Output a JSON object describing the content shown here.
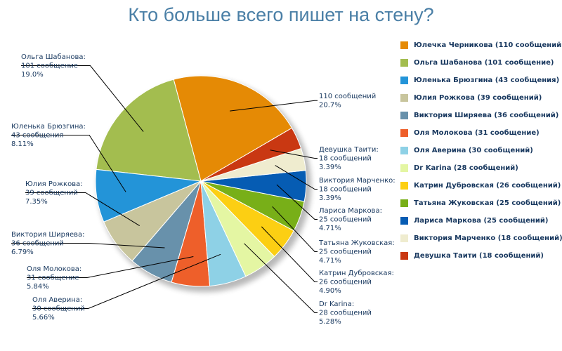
{
  "chart_data": {
    "type": "pie",
    "title": "Кто больше всего пишет на стену?",
    "slices": [
      {
        "legend": "Юлечка Черникова (110 сообщений)",
        "value": 110,
        "color": "#e58a05",
        "callout": [
          "110 сообщений",
          "20.7%"
        ]
      },
      {
        "legend": "Ольга Шабанова (101 сообщение)",
        "value": 101,
        "color": "#a3bd4f",
        "callout": [
          "Ольга Шабанова:",
          "101 сообщение",
          "19.0%"
        ]
      },
      {
        "legend": "Юленька Брюзгина (43 сообщения)",
        "value": 43,
        "color": "#2394d8",
        "callout": [
          "Юленька Брюзгина:",
          "43 сообщения",
          "8.11%"
        ]
      },
      {
        "legend": "Юлия Рожкова (39 сообщений)",
        "value": 39,
        "color": "#c8c59d",
        "callout": [
          "Юлия Рожкова:",
          "39 сообщений",
          "7.35%"
        ]
      },
      {
        "legend": "Виктория Ширяева (36 сообщений)",
        "value": 36,
        "color": "#6891ab",
        "callout": [
          "Виктория Ширяева:",
          "36 сообщений",
          "6.79%"
        ]
      },
      {
        "legend": "Оля Молокова (31 сообщение)",
        "value": 31,
        "color": "#ee5f2a",
        "callout": [
          "Оля Молокова:",
          "31 сообщение",
          "5.84%"
        ]
      },
      {
        "legend": "Оля Аверина (30 сообщений)",
        "value": 30,
        "color": "#8ed1e6",
        "callout": [
          "Оля Аверина:",
          "30 сообщений",
          "5.66%"
        ]
      },
      {
        "legend": "Dr Karina (28 сообщений)",
        "value": 28,
        "color": "#e4f6a3",
        "callout": [
          "Dr Karina:",
          "28 сообщений",
          "5.28%"
        ]
      },
      {
        "legend": "Катрин Дубровская (26 сообщений)",
        "value": 26,
        "color": "#fccf13",
        "callout": [
          "Катрин Дубровская:",
          "26 сообщений",
          "4.90%"
        ]
      },
      {
        "legend": "Татьяна Жуковская (25 сообщений)",
        "value": 25,
        "color": "#78af18",
        "callout": [
          "Татьяна Жуковская:",
          "25 сообщений",
          "4.71%"
        ]
      },
      {
        "legend": "Лариса Маркова (25 сообщений)",
        "value": 25,
        "color": "#065cb3",
        "callout": [
          "Лариса Маркова:",
          "25 сообщений",
          "4.71%"
        ]
      },
      {
        "legend": "Виктория Марченко (18 сообщений)",
        "value": 18,
        "color": "#efeccf",
        "callout": [
          "Виктория Марченко:",
          "18 сообщений",
          "3.39%"
        ]
      },
      {
        "legend": "Девушка Таити (18 сообщений)",
        "value": 18,
        "color": "#c93812",
        "callout": [
          "Девушка Таити:",
          "18 сообщений",
          "3.39%"
        ]
      }
    ]
  }
}
